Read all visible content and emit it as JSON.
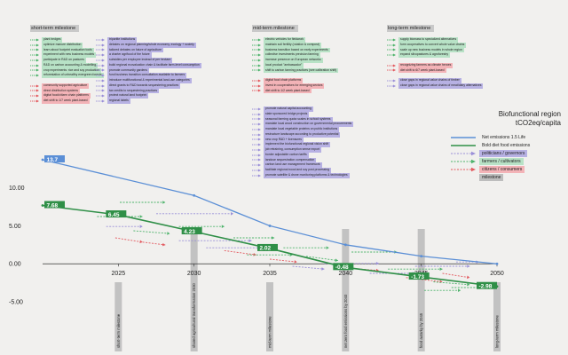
{
  "milestones": {
    "short_term": "short-term milestone",
    "mid_term": "mid-term milestone",
    "long_term": "long-term milestone"
  },
  "columns": {
    "short_a": [
      {
        "text": "plant hedges",
        "group": "farmers"
      },
      {
        "text": "optimize manure distribution",
        "group": "farmers"
      },
      {
        "text": "learn about footprint evaluation tools",
        "group": "farmers"
      },
      {
        "text": "experiment with new business models",
        "group": "farmers"
      },
      {
        "text": "participate in R&D on pastures",
        "group": "farmers"
      },
      {
        "text": "R&D on carbon accounting & modelling",
        "group": "farmers"
      },
      {
        "text": "crop experiments: rice and soy production",
        "group": "farmers"
      },
      {
        "text": "reforestation of unhealthy evergreen forests",
        "group": "farmers"
      },
      {
        "text": "",
        "group": "gap"
      },
      {
        "text": "community supported agriculture",
        "group": "citizens"
      },
      {
        "text": "direct distribution systems",
        "group": "citizens"
      },
      {
        "text": "digital food/citizen chain platforms",
        "group": "citizens"
      },
      {
        "text": "diet shift to 1/7 week plant-based",
        "group": "citizens"
      }
    ],
    "short_b": [
      {
        "text": "tripartite institutions",
        "group": "politicians"
      },
      {
        "text": "debates on regional planning/whole economy, ecology + society",
        "group": "politicians"
      },
      {
        "text": "tailored debates on future of agriculture",
        "group": "politicians"
      },
      {
        "text": "a charter agrifood of the future",
        "group": "politicians"
      },
      {
        "text": "subsidies per employee instead of per hectare",
        "group": "politicians"
      },
      {
        "text": "build regional ecovaluation chain & facilitate farm-level consumption",
        "group": "politicians"
      },
      {
        "text": "promote community gardens",
        "group": "politicians"
      },
      {
        "text": "fund business transition consultation available to farmers",
        "group": "politicians"
      },
      {
        "text": "introduce multifunctional & experimental land-use categories",
        "group": "politicians"
      },
      {
        "text": "direct grants to R&D towards sequestering practices",
        "group": "politicians"
      },
      {
        "text": "tax credits to sequestering practices",
        "group": "politicians"
      },
      {
        "text": "protect natural land footprint",
        "group": "politicians"
      },
      {
        "text": "regional labels",
        "group": "politicians"
      }
    ],
    "mid_a": [
      {
        "text": "electric vehicles for fieldwork",
        "group": "farmers"
      },
      {
        "text": "maintain soil fertility (rotation & compost)",
        "group": "farmers"
      },
      {
        "text": "business transition based on early experiments",
        "group": "farmers"
      },
      {
        "text": "collective investments precision farming",
        "group": "farmers"
      },
      {
        "text": "increase presence on European networks",
        "group": "farmers"
      },
      {
        "text": "local product \"ambassador\"",
        "group": "farmers"
      },
      {
        "text": "shift to carbon farming practices (see calibration shift)",
        "group": "farmers"
      },
      {
        "text": "",
        "group": "gap"
      },
      {
        "text": "digital food chain platforms",
        "group": "citizens"
      },
      {
        "text": "invest in cooperatives for emerging sectors",
        "group": "citizens"
      },
      {
        "text": "diet shift to 1/2 week plant-based",
        "group": "citizens"
      }
    ],
    "mid_b": [
      {
        "text": "promote natural capital accounting",
        "group": "politicians"
      },
      {
        "text": "state sponsored bridge projects",
        "group": "politicians"
      },
      {
        "text": "seasonal farming quota scales in school systems",
        "group": "politicians"
      },
      {
        "text": "mandate local wood construction on governmental procurements",
        "group": "politicians"
      },
      {
        "text": "mandate local vegetable proteins on public institutions",
        "group": "politicians"
      },
      {
        "text": "restructure landscape according to productive potential",
        "group": "politicians"
      },
      {
        "text": "new crop R&D + licensures",
        "group": "politicians"
      },
      {
        "text": "implement the biofunctional regional vision shift",
        "group": "politicians"
      },
      {
        "text": "job retraining, consumption sense export",
        "group": "politicians"
      },
      {
        "text": "border adjustable carbon tariffs",
        "group": "politicians"
      },
      {
        "text": "landuse sequestration compensation",
        "group": "politicians"
      },
      {
        "text": "carbon land use management framework",
        "group": "politicians"
      },
      {
        "text": "facilitate regional wood and soy post processing",
        "group": "politicians"
      },
      {
        "text": "promote satellite & drone monitoring platforms & technologies",
        "group": "politicians"
      }
    ],
    "long_a": [
      {
        "text": "supply biomass to specialized alternatives",
        "group": "farmers"
      },
      {
        "text": "form cooperatives to convert whole value chains",
        "group": "farmers"
      },
      {
        "text": "scale up new business models in whole region",
        "group": "farmers"
      },
      {
        "text": "expand silvopastures & agroforestry",
        "group": "farmers"
      },
      {
        "text": "",
        "group": "gap"
      },
      {
        "text": "recognizing farmers as climate heroes",
        "group": "citizens"
      },
      {
        "text": "diet shift to 6/7 week plant-based",
        "group": "citizens"
      },
      {
        "text": "",
        "group": "gap"
      },
      {
        "text": "close gaps in regional value chains of timber",
        "group": "politicians"
      },
      {
        "text": "close gaps in regional value chains of meat/dairy alternatives",
        "group": "politicians"
      }
    ]
  },
  "legend": {
    "title_line1": "Biofunctional region",
    "title_line2": "tCO2eq/capita",
    "items": [
      {
        "label": "Net emissions 1.5 Life",
        "kind": "line",
        "color": "#5b8fd6"
      },
      {
        "label": "Bold diet food emissions",
        "kind": "line",
        "color": "#2f8f47"
      },
      {
        "label": "politicians / governors",
        "kind": "arrow",
        "color": "#9a8fd8",
        "box": "#b7b1e3"
      },
      {
        "label": "farmers / cultivators",
        "kind": "arrow",
        "color": "#4db36b",
        "box": "#b8e2c6"
      },
      {
        "label": "citizens / consumers",
        "kind": "arrow",
        "color": "#e3595f",
        "box": "#f3b3b7"
      },
      {
        "label": "milestone",
        "kind": "box",
        "color": "#bdbdbd",
        "box": "#bdbdbd"
      }
    ]
  },
  "vlabels": [
    {
      "text": "short-term milestone"
    },
    {
      "text": "shared agricultural transformation 2030"
    },
    {
      "text": "mid-term milestone"
    },
    {
      "text": "net zero food emissions by 2040"
    },
    {
      "text": "food autarky by 2045"
    },
    {
      "text": "long-term milestone"
    }
  ],
  "colors": {
    "blue": "#5b8fd6",
    "green": "#2f8f47",
    "purple": "#9a8fd8",
    "mint": "#4db36b",
    "red": "#e3595f",
    "milestone": "#bdbdbd"
  },
  "chart_data": {
    "type": "line",
    "xlim": [
      2020,
      2050
    ],
    "ylim": [
      -5,
      13.7
    ],
    "xticks": [
      2025,
      2030,
      2035,
      2040,
      2045,
      2050
    ],
    "yticks": [
      10,
      5,
      0,
      -5
    ],
    "ytick_labels": [
      "10.00",
      "5.00",
      "0.00",
      "-5.00"
    ],
    "series": [
      {
        "name": "Net emissions 1.5 Life",
        "color": "#5b8fd6",
        "x": [
          2020,
          2030,
          2035,
          2040,
          2045,
          2050
        ],
        "y": [
          13.7,
          9.0,
          5.0,
          2.5,
          1.0,
          0.0
        ]
      },
      {
        "name": "Bold diet food emissions",
        "color": "#2f8f47",
        "x": [
          2020,
          2025,
          2030,
          2035,
          2040,
          2045,
          2050
        ],
        "y": [
          7.68,
          6.45,
          4.23,
          2.02,
          -0.48,
          -1.73,
          -2.98
        ]
      }
    ],
    "data_labels": [
      {
        "x": 2020,
        "y": 13.7,
        "text": "13.7",
        "series": 0
      },
      {
        "x": 2020,
        "y": 7.68,
        "text": "7.68",
        "series": 1
      },
      {
        "x": 2025,
        "y": 6.45,
        "text": "6.45",
        "series": 1
      },
      {
        "x": 2030,
        "y": 4.23,
        "text": "4.23",
        "series": 1
      },
      {
        "x": 2035,
        "y": 2.02,
        "text": "2.02",
        "series": 1
      },
      {
        "x": 2040,
        "y": -0.48,
        "text": "-0.48",
        "series": 1
      },
      {
        "x": 2045,
        "y": -1.73,
        "text": "-1.73",
        "series": 1
      },
      {
        "x": 2050,
        "y": -2.98,
        "text": "-2.98",
        "series": 1
      }
    ],
    "milestone_years": [
      2025,
      2030,
      2035,
      2040,
      2045,
      2050
    ]
  }
}
